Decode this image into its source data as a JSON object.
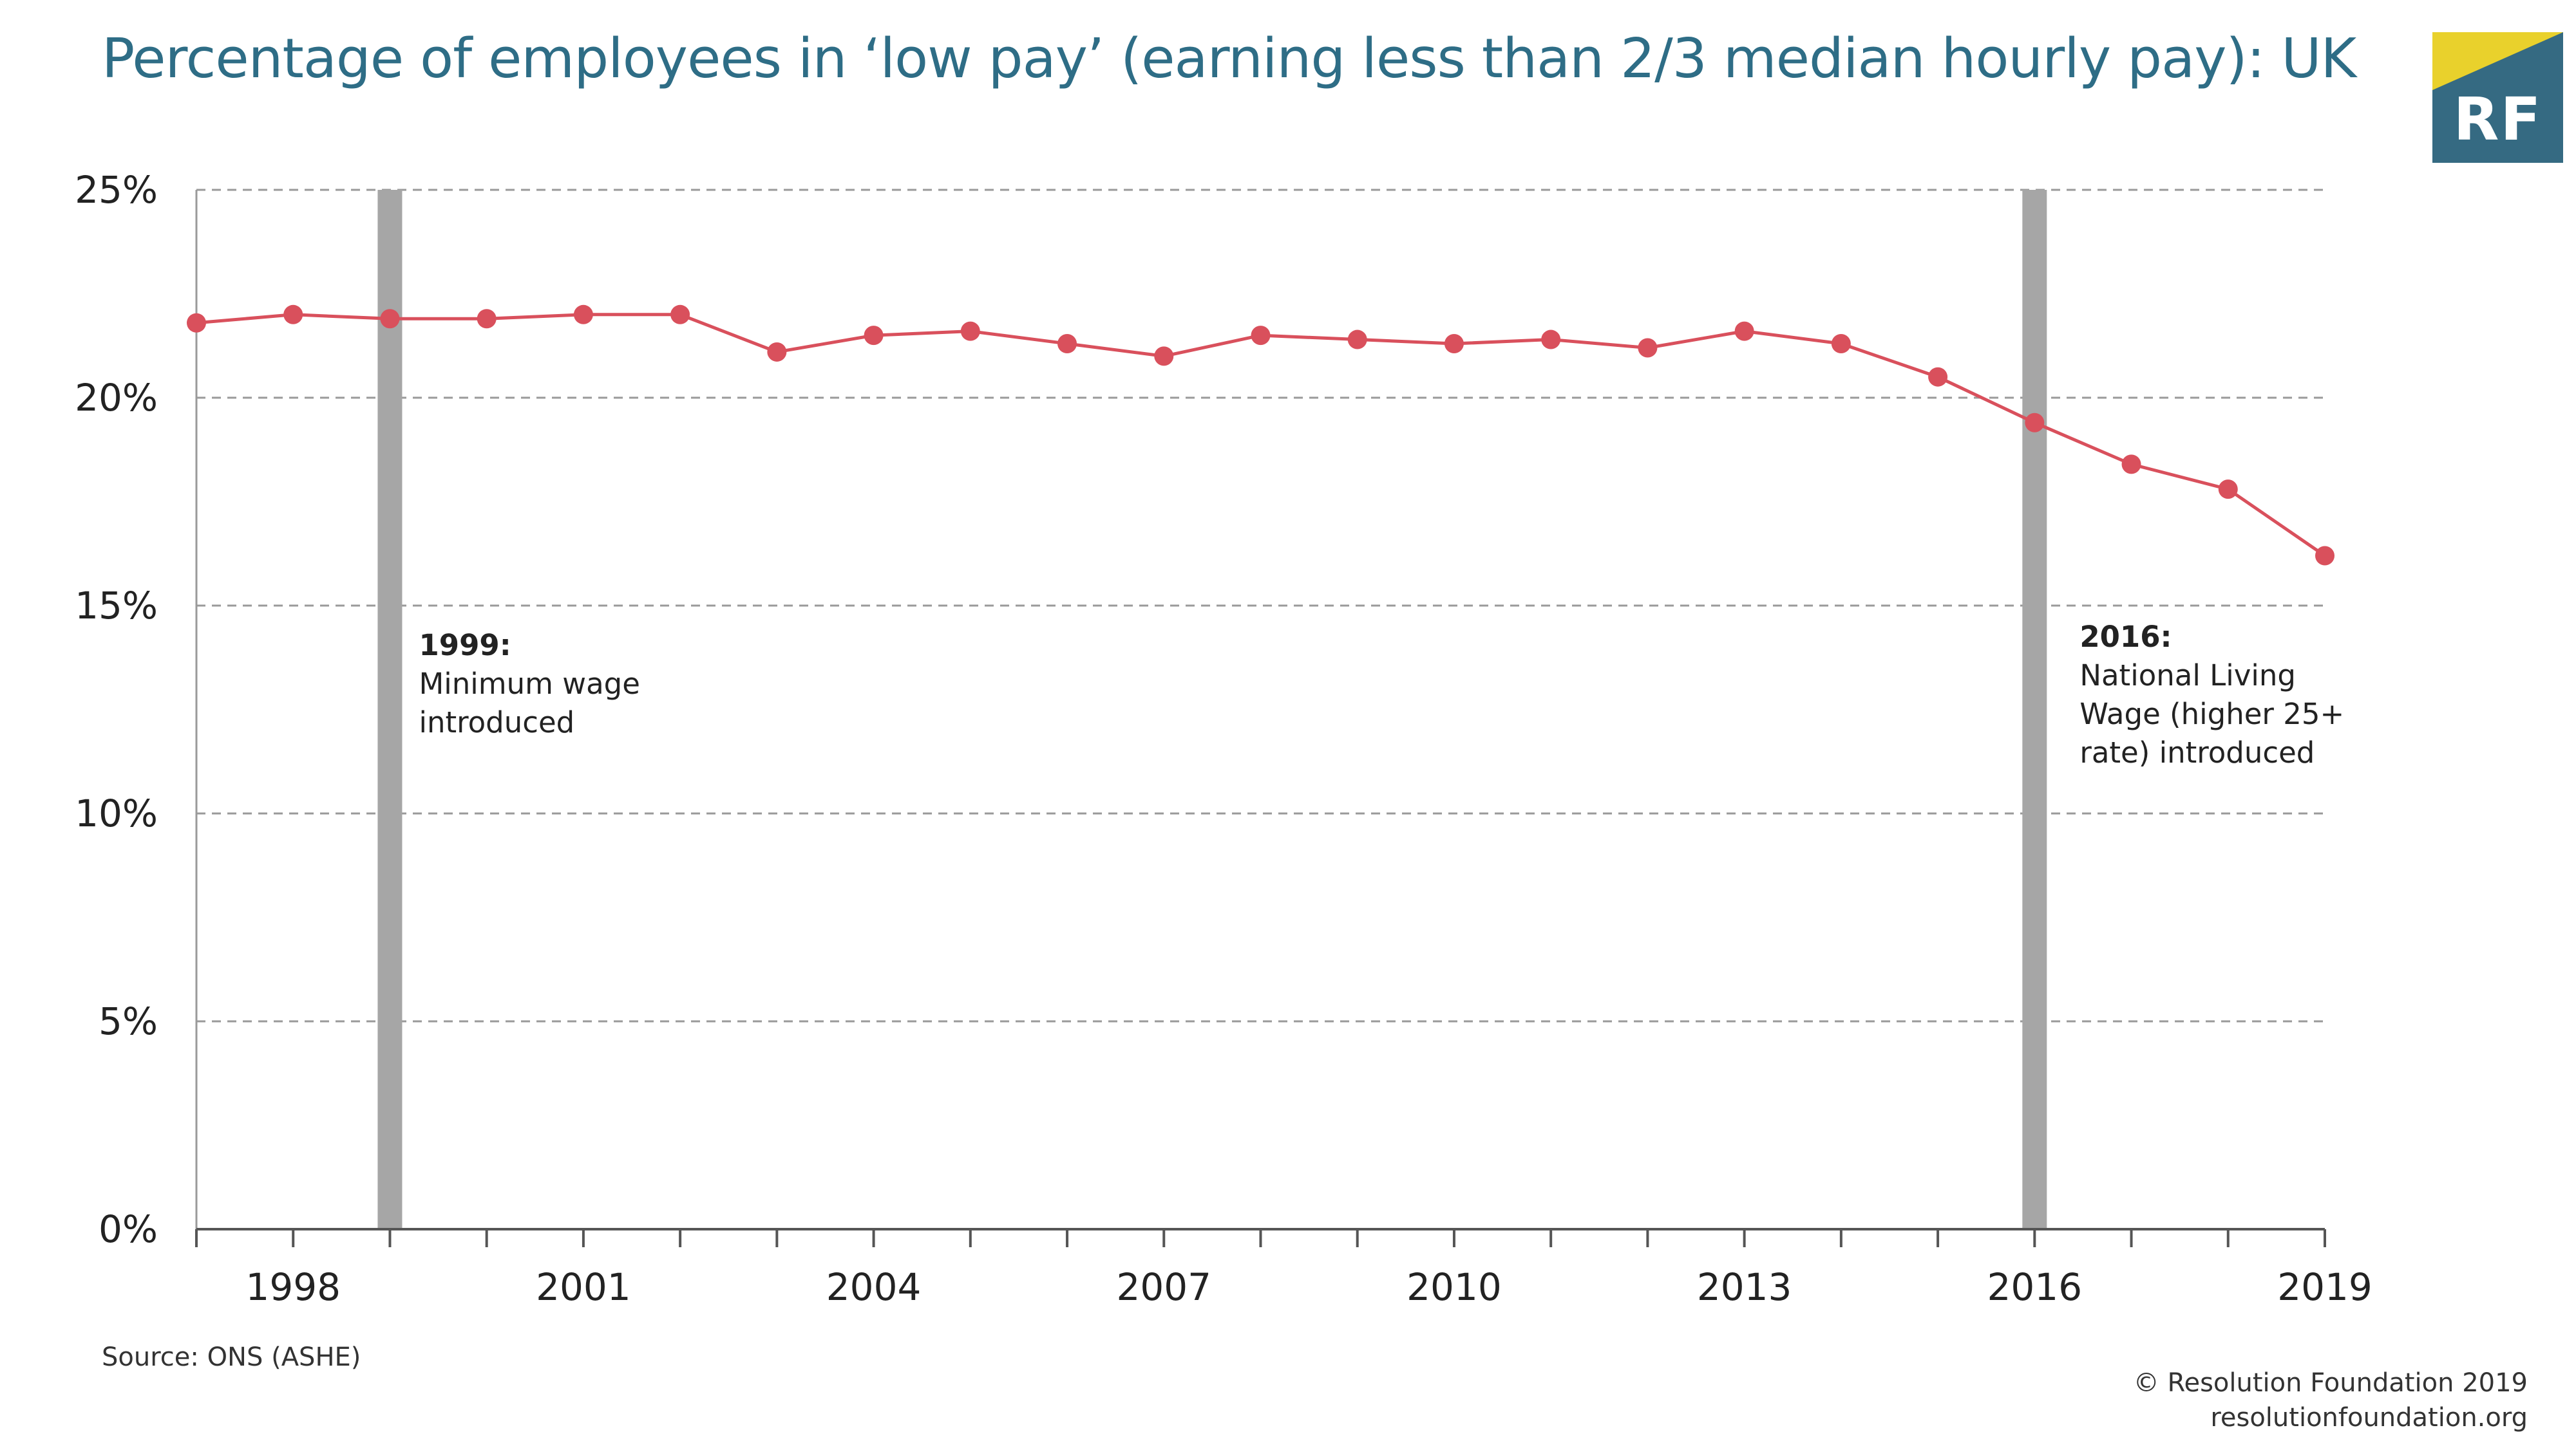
{
  "header": {
    "title": "Percentage of employees in ‘low pay’ (earning less than 2/3 median hourly pay): UK"
  },
  "logo": {
    "text": "RF",
    "colors": {
      "navy": "#356a82",
      "yellow": "#e9d12c"
    }
  },
  "footer": {
    "source": "Source: ONS (ASHE)",
    "copyright": "© Resolution Foundation 2019",
    "website": "resolutionfoundation.org"
  },
  "chart_data": {
    "type": "line",
    "x": [
      1997,
      1998,
      1999,
      2000,
      2001,
      2002,
      2003,
      2004,
      2005,
      2006,
      2007,
      2008,
      2009,
      2010,
      2011,
      2012,
      2013,
      2014,
      2015,
      2016,
      2017,
      2018,
      2019
    ],
    "series": [
      {
        "values": [
          21.8,
          22.0,
          21.9,
          21.9,
          22.0,
          22.0,
          21.1,
          21.5,
          21.6,
          21.3,
          21.0,
          21.5,
          21.4,
          21.3,
          21.4,
          21.2,
          21.6,
          21.3,
          20.5,
          19.4,
          18.4,
          17.8,
          16.2
        ],
        "color": "#d9505c"
      }
    ],
    "xlim": [
      1997,
      2019
    ],
    "ylim": [
      0,
      25
    ],
    "yticks": [
      0,
      5,
      10,
      15,
      20,
      25
    ],
    "ytick_labels": [
      "0%",
      "5%",
      "10%",
      "15%",
      "20%",
      "25%"
    ],
    "xtick_labels": [
      "1998",
      "2001",
      "2004",
      "2007",
      "2010",
      "2013",
      "2016",
      "2019"
    ],
    "xtick_label_values": [
      1998,
      2001,
      2004,
      2007,
      2010,
      2013,
      2016,
      2019
    ],
    "grid": true,
    "grid_style": "dashed horizontal",
    "markers": [
      {
        "year": 1999,
        "color": "#a6a6a6",
        "label_bold": "1999:",
        "label_lines": [
          "Minimum wage",
          "introduced"
        ]
      },
      {
        "year": 2016,
        "color": "#a6a6a6",
        "label_bold": "2016:",
        "label_lines": [
          "National Living",
          "Wage (higher 25+",
          "rate) introduced"
        ]
      }
    ]
  }
}
